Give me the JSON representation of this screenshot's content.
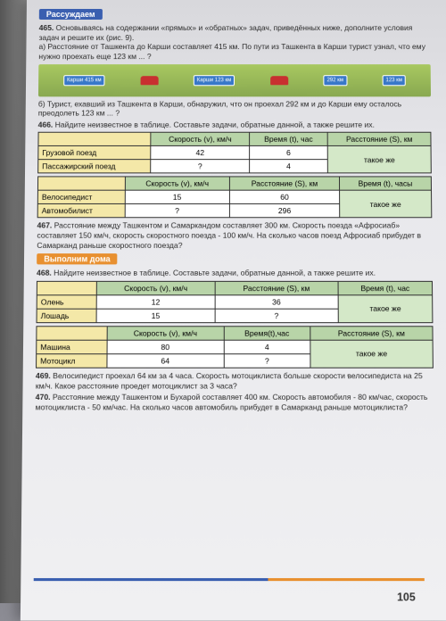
{
  "heading1": "Рассуждаем",
  "p465": {
    "num": "465.",
    "text": "Основываясь на содержании «прямых» и «обратных» задач, приведённых ниже, дополните условия задач и решите их (рис. 9).",
    "a": "а) Расстояние от Ташкента до Карши составляет 415 км. По пути из Ташкента в Карши турист узнал, что ему нужно проехать еще 123 км ... ?",
    "b": "б) Турист, ехавший из Ташкента в Карши, обнаружил, что он проехал 292 км и до Карши ему осталось преодолеть 123 км ... ?",
    "sign1": "Карши 415 км",
    "sign2": "Карши 123 км",
    "sign3": "292 км",
    "sign4": "123 км"
  },
  "p466": {
    "num": "466.",
    "text": "Найдите неизвестное в таблице. Составьте задачи, обратные данной, а также решите их."
  },
  "table1": {
    "h1": "Скорость (v), км/ч",
    "h2": "Время (t), час",
    "h3": "Расстояние (S), км",
    "r1": {
      "label": "Грузовой поезд",
      "c1": "42",
      "c2": "6",
      "c3": "такое же"
    },
    "r2": {
      "label": "Пассажирский поезд",
      "c1": "?",
      "c2": "4"
    }
  },
  "table2": {
    "h1": "Скорость (v), км/ч",
    "h2": "Расстояние (S), км",
    "h3": "Время (t), часы",
    "r1": {
      "label": "Велосипедист",
      "c1": "15",
      "c2": "60",
      "c3": "такое же"
    },
    "r2": {
      "label": "Автомобилист",
      "c1": "?",
      "c2": "296"
    }
  },
  "p467": {
    "num": "467.",
    "text": "Расстояние между Ташкентом и Самаркандом составляет 300 км. Скорость поезда «Афросиаб» составляет 150 км/ч, скорость скоростного поезда - 100 км/ч. На сколько часов поезд Афросиаб прибудет в Самарканд раньше скоростного поезда?"
  },
  "heading2": "Выполним дома",
  "p468": {
    "num": "468.",
    "text": "Найдите неизвестное в таблице. Составьте задачи, обратные данной, а также решите их."
  },
  "table3": {
    "h1": "Скорость (v), км/ч",
    "h2": "Расстояние (S), км",
    "h3": "Время (t), час",
    "r1": {
      "label": "Олень",
      "c1": "12",
      "c2": "36",
      "c3": "такое же"
    },
    "r2": {
      "label": "Лошадь",
      "c1": "15",
      "c2": "?"
    }
  },
  "table4": {
    "h1": "Скорость (v), км/ч",
    "h2": "Время(t),час",
    "h3": "Расстояние (S), км",
    "r1": {
      "label": "Машина",
      "c1": "80",
      "c2": "4",
      "c3": "такое же"
    },
    "r2": {
      "label": "Мотоцикл",
      "c1": "64",
      "c2": "?"
    }
  },
  "p469": {
    "num": "469.",
    "text": "Велосипедист проехал 64 км за 4 часа. Скорость мотоциклиста больше скорости велосипедиста на 25 км/ч. Какое расстояние проедет мотоциклист за 3 часа?"
  },
  "p470": {
    "num": "470.",
    "text": "Расстояние между Ташкентом и Бухарой составляет 400 км. Скорость автомобиля - 80 км/час, скорость мотоциклиста - 50 км/час. На сколько часов автомобиль прибудет в Самарканд раньше мотоциклиста?"
  },
  "pageNumber": "105"
}
